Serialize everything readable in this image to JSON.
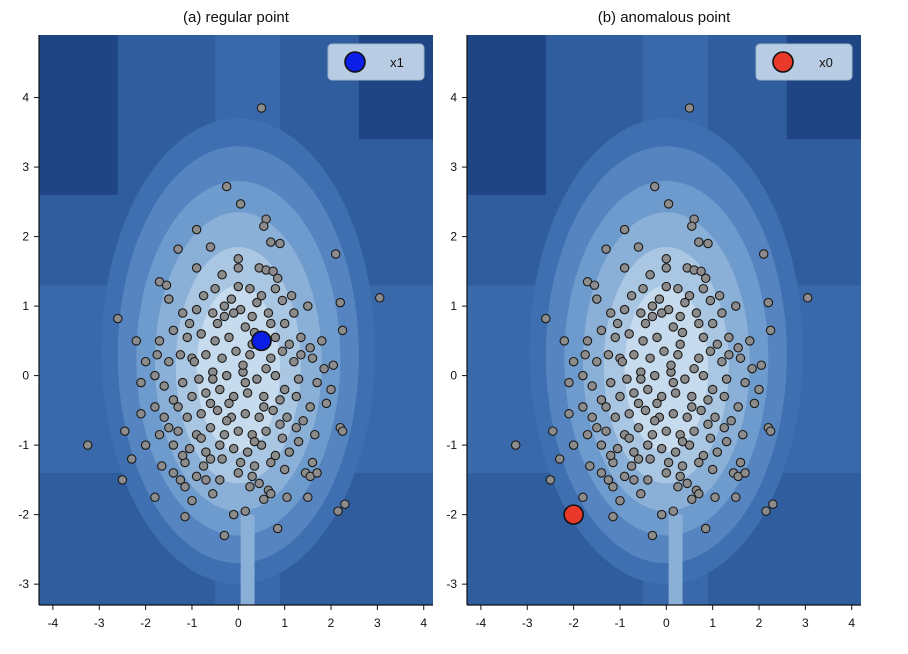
{
  "chart_data": [
    {
      "type": "scatter",
      "title": "(a) regular point",
      "xlim": [
        -4.3,
        4.2
      ],
      "ylim": [
        -3.3,
        4.9
      ],
      "xticks": [
        -4,
        -3,
        -2,
        -1,
        0,
        1,
        2,
        3,
        4
      ],
      "yticks": [
        -3,
        -2,
        -1,
        0,
        1,
        2,
        3,
        4
      ],
      "legend_position": "top-right",
      "legend_label": "x1",
      "highlight": {
        "label": "x1",
        "x": 0.5,
        "y": 0.5,
        "color": "#0a1ee8"
      },
      "background": "filled contour of anomaly score (blue levels, lightest at center)"
    },
    {
      "type": "scatter",
      "title": "(b) anomalous point",
      "xlim": [
        -4.3,
        4.2
      ],
      "ylim": [
        -3.3,
        4.9
      ],
      "xticks": [
        -4,
        -3,
        -2,
        -1,
        0,
        1,
        2,
        3,
        4
      ],
      "yticks": [
        -3,
        -2,
        -1,
        0,
        1,
        2,
        3,
        4
      ],
      "legend_position": "top-right",
      "legend_label": "x0",
      "highlight": {
        "label": "x0",
        "x": -2.0,
        "y": -2.0,
        "color": "#e8392b"
      },
      "background": "filled contour of anomaly score (blue levels, lightest at center)"
    }
  ],
  "shared_points": {
    "color": "#8c8c8c",
    "edge": "#1a1a1a",
    "points": [
      [
        0.5,
        3.85
      ],
      [
        -0.25,
        2.72
      ],
      [
        0.05,
        2.47
      ],
      [
        -0.9,
        2.1
      ],
      [
        0.6,
        2.25
      ],
      [
        0.55,
        2.15
      ],
      [
        0.7,
        1.92
      ],
      [
        0.9,
        1.9
      ],
      [
        -0.6,
        1.85
      ],
      [
        -1.3,
        1.82
      ],
      [
        2.1,
        1.75
      ],
      [
        3.05,
        1.12
      ],
      [
        -1.7,
        1.35
      ],
      [
        -1.55,
        1.3
      ],
      [
        -0.9,
        1.55
      ],
      [
        -1.5,
        1.1
      ],
      [
        -2.6,
        0.82
      ],
      [
        0.0,
        1.68
      ],
      [
        0.0,
        1.55
      ],
      [
        0.45,
        1.55
      ],
      [
        0.6,
        1.52
      ],
      [
        0.75,
        1.5
      ],
      [
        0.85,
        1.4
      ],
      [
        0.0,
        1.28
      ],
      [
        -0.5,
        1.25
      ],
      [
        -0.15,
        1.1
      ],
      [
        0.5,
        1.15
      ],
      [
        0.95,
        1.08
      ],
      [
        1.15,
        1.15
      ],
      [
        1.5,
        1.0
      ],
      [
        2.2,
        1.05
      ],
      [
        2.25,
        0.65
      ],
      [
        1.8,
        0.5
      ],
      [
        1.35,
        0.55
      ],
      [
        -1.2,
        0.9
      ],
      [
        -0.9,
        0.95
      ],
      [
        -0.55,
        0.9
      ],
      [
        -0.3,
        0.85
      ],
      [
        0.05,
        0.95
      ],
      [
        0.3,
        0.85
      ],
      [
        0.65,
        0.9
      ],
      [
        1.0,
        0.75
      ],
      [
        -1.4,
        0.65
      ],
      [
        -1.7,
        0.5
      ],
      [
        -1.1,
        0.55
      ],
      [
        -0.8,
        0.6
      ],
      [
        -0.5,
        0.5
      ],
      [
        -0.2,
        0.55
      ],
      [
        0.15,
        0.7
      ],
      [
        0.35,
        0.62
      ],
      [
        0.8,
        0.55
      ],
      [
        1.1,
        0.45
      ],
      [
        1.55,
        0.4
      ],
      [
        -2.0,
        0.2
      ],
      [
        -1.8,
        0.0
      ],
      [
        -1.5,
        0.2
      ],
      [
        -1.25,
        0.3
      ],
      [
        -1.0,
        0.25
      ],
      [
        -0.7,
        0.3
      ],
      [
        -0.35,
        0.25
      ],
      [
        -0.05,
        0.35
      ],
      [
        0.25,
        0.3
      ],
      [
        0.7,
        0.25
      ],
      [
        1.2,
        0.2
      ],
      [
        1.6,
        0.25
      ],
      [
        2.05,
        0.15
      ],
      [
        -2.1,
        -0.1
      ],
      [
        -1.6,
        -0.15
      ],
      [
        -1.2,
        -0.1
      ],
      [
        -0.85,
        -0.05
      ],
      [
        -0.55,
        0.05
      ],
      [
        -0.25,
        0.0
      ],
      [
        0.1,
        0.05
      ],
      [
        0.4,
        -0.05
      ],
      [
        0.8,
        0.0
      ],
      [
        1.3,
        -0.05
      ],
      [
        1.7,
        -0.1
      ],
      [
        2.0,
        -0.2
      ],
      [
        -1.8,
        -0.45
      ],
      [
        -1.4,
        -0.35
      ],
      [
        -1.0,
        -0.3
      ],
      [
        -0.7,
        -0.25
      ],
      [
        -0.4,
        -0.2
      ],
      [
        -0.1,
        -0.3
      ],
      [
        0.2,
        -0.25
      ],
      [
        0.55,
        -0.3
      ],
      [
        0.9,
        -0.35
      ],
      [
        1.25,
        -0.3
      ],
      [
        1.55,
        -0.45
      ],
      [
        1.9,
        -0.4
      ],
      [
        -2.1,
        -0.55
      ],
      [
        -1.6,
        -0.6
      ],
      [
        -1.1,
        -0.6
      ],
      [
        -0.8,
        -0.55
      ],
      [
        -0.45,
        -0.5
      ],
      [
        -0.15,
        -0.6
      ],
      [
        0.15,
        -0.55
      ],
      [
        0.45,
        -0.6
      ],
      [
        0.75,
        -0.5
      ],
      [
        1.05,
        -0.6
      ],
      [
        1.4,
        -0.65
      ],
      [
        2.2,
        -0.75
      ],
      [
        2.25,
        -0.8
      ],
      [
        -2.45,
        -0.8
      ],
      [
        -1.7,
        -0.85
      ],
      [
        -1.3,
        -0.8
      ],
      [
        -0.9,
        -0.85
      ],
      [
        -0.6,
        -0.75
      ],
      [
        -0.3,
        -0.85
      ],
      [
        0.0,
        -0.8
      ],
      [
        0.3,
        -0.85
      ],
      [
        0.6,
        -0.8
      ],
      [
        0.95,
        -0.9
      ],
      [
        1.3,
        -0.95
      ],
      [
        1.65,
        -0.85
      ],
      [
        -3.25,
        -1.0
      ],
      [
        -2.0,
        -1.0
      ],
      [
        -1.4,
        -1.0
      ],
      [
        -1.05,
        -1.05
      ],
      [
        -0.7,
        -1.1
      ],
      [
        -0.4,
        -1.0
      ],
      [
        -0.1,
        -1.05
      ],
      [
        0.2,
        -1.1
      ],
      [
        0.5,
        -1.0
      ],
      [
        0.8,
        -1.15
      ],
      [
        1.1,
        -1.1
      ],
      [
        1.6,
        -1.25
      ],
      [
        -1.15,
        -1.25
      ],
      [
        -0.75,
        -1.3
      ],
      [
        -0.35,
        -1.2
      ],
      [
        0.05,
        -1.25
      ],
      [
        0.35,
        -1.3
      ],
      [
        0.7,
        -1.25
      ],
      [
        1.0,
        -1.35
      ],
      [
        1.45,
        -1.4
      ],
      [
        1.55,
        -1.45
      ],
      [
        -1.4,
        -1.4
      ],
      [
        -0.9,
        -1.45
      ],
      [
        -0.4,
        -1.5
      ],
      [
        0.0,
        -1.4
      ],
      [
        0.3,
        -1.45
      ],
      [
        -1.25,
        -1.5
      ],
      [
        -1.15,
        -1.6
      ],
      [
        -0.55,
        -1.7
      ],
      [
        0.65,
        -1.65
      ],
      [
        0.7,
        -1.7
      ],
      [
        -1.8,
        -1.75
      ],
      [
        -1.0,
        -1.8
      ],
      [
        0.55,
        -1.78
      ],
      [
        1.05,
        -1.75
      ],
      [
        1.5,
        -1.75
      ],
      [
        -2.5,
        -1.5
      ],
      [
        2.3,
        -1.85
      ],
      [
        2.15,
        -1.95
      ],
      [
        -0.1,
        -2.0
      ],
      [
        0.15,
        -1.95
      ],
      [
        -1.15,
        -2.03
      ],
      [
        0.85,
        -2.2
      ],
      [
        -0.3,
        -2.3
      ],
      [
        -2.3,
        -1.2
      ],
      [
        -1.65,
        -1.3
      ],
      [
        1.7,
        -1.4
      ],
      [
        -0.55,
        -0.05
      ],
      [
        0.6,
        0.1
      ],
      [
        -0.2,
        -0.4
      ],
      [
        0.3,
        0.45
      ],
      [
        -0.95,
        0.2
      ],
      [
        1.0,
        -0.2
      ],
      [
        -1.5,
        -0.75
      ],
      [
        1.2,
        0.9
      ],
      [
        -0.35,
        1.45
      ],
      [
        0.25,
        1.25
      ],
      [
        -0.75,
        1.15
      ],
      [
        0.45,
        -1.55
      ],
      [
        -0.6,
        -1.2
      ],
      [
        1.85,
        0.1
      ],
      [
        -2.2,
        0.5
      ],
      [
        -0.1,
        0.9
      ],
      [
        0.9,
        -0.7
      ],
      [
        -1.3,
        -0.45
      ],
      [
        0.15,
        -0.1
      ],
      [
        -0.45,
        0.75
      ],
      [
        0.55,
        -0.45
      ],
      [
        -0.8,
        -0.9
      ],
      [
        1.35,
        0.3
      ],
      [
        -1.75,
        0.3
      ],
      [
        0.35,
        -0.95
      ],
      [
        -0.25,
        -0.65
      ],
      [
        0.7,
        0.75
      ],
      [
        -1.05,
        0.75
      ],
      [
        0.1,
        0.15
      ],
      [
        -0.6,
        -0.4
      ],
      [
        0.95,
        0.35
      ],
      [
        -0.3,
        1.0
      ],
      [
        0.4,
        1.05
      ],
      [
        -1.2,
        -1.15
      ],
      [
        0.25,
        -1.6
      ],
      [
        1.25,
        -0.75
      ],
      [
        -0.7,
        -1.5
      ],
      [
        0.8,
        1.25
      ]
    ]
  }
}
